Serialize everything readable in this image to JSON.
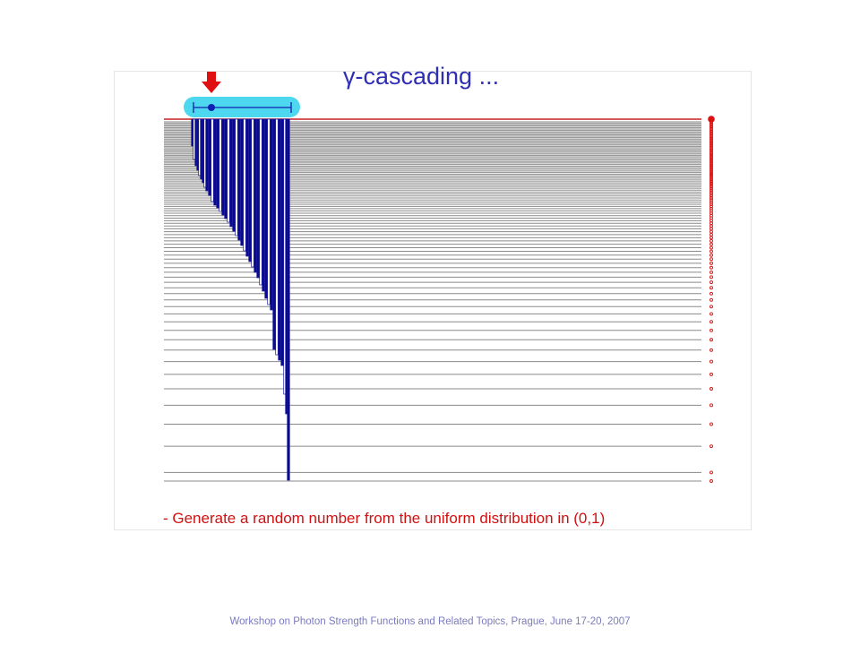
{
  "slide": {
    "title": "γ-cascading ...",
    "bullet": "- Generate a random number from the uniform distribution in (0,1)",
    "footer": "Workshop on Photon Strength Functions and Related Topics, Prague, June 17-20, 2007"
  },
  "colors": {
    "level_line": "#8a8a8a",
    "top_level": "#cc2222",
    "dot": "#dd1111",
    "cascade_fill": "#0a0a8c",
    "cascade_stroke": "#1a1aa0",
    "pointer": "#e01010",
    "selector_bg": "#4dd8f0",
    "selector_line": "#1020b0"
  }
}
